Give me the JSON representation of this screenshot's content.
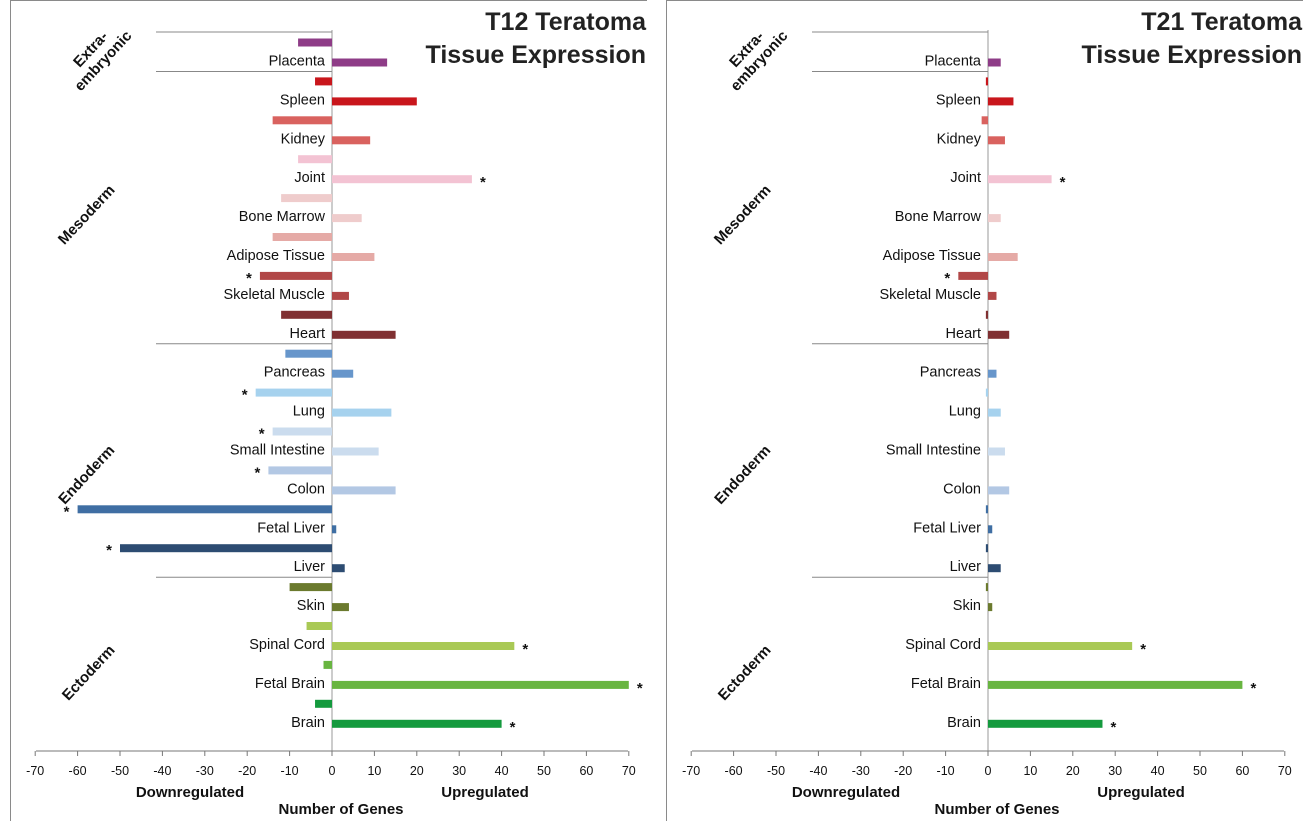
{
  "chart_data": [
    {
      "type": "bar",
      "orientation": "horizontal",
      "title": [
        "T12 Teratoma",
        "Tissue Expression"
      ],
      "xlabel": "Number of Genes",
      "xlabel_left": "Downregulated",
      "xlabel_right": "Upregulated",
      "xlim": [
        -70,
        70
      ],
      "xticks": [
        "-70",
        "-60",
        "-50",
        "-40",
        "-30",
        "-20",
        "-10",
        "0",
        "10",
        "20",
        "30",
        "40",
        "50",
        "60",
        "70"
      ],
      "groups": [
        {
          "name": "Extra-\nembryonic",
          "lines": [
            "Extra-",
            "embryonic"
          ],
          "categories": [
            "Placenta"
          ]
        },
        {
          "name": "Mesoderm",
          "lines": [
            "Mesoderm"
          ],
          "categories": [
            "Spleen",
            "Kidney",
            "Joint",
            "Bone Marrow",
            "Adipose Tissue",
            "Skeletal Muscle",
            "Heart"
          ]
        },
        {
          "name": "Endoderm",
          "lines": [
            "Endoderm"
          ],
          "categories": [
            "Pancreas",
            "Lung",
            "Small Intestine",
            "Colon",
            "Fetal Liver",
            "Liver"
          ]
        },
        {
          "name": "Ectoderm",
          "lines": [
            "Ectoderm"
          ],
          "categories": [
            "Skin",
            "Spinal Cord",
            "Fetal Brain",
            "Brain"
          ]
        }
      ],
      "categories": [
        "Placenta",
        "Spleen",
        "Kidney",
        "Joint",
        "Bone Marrow",
        "Adipose Tissue",
        "Skeletal Muscle",
        "Heart",
        "Pancreas",
        "Lung",
        "Small Intestine",
        "Colon",
        "Fetal Liver",
        "Liver",
        "Skin",
        "Spinal Cord",
        "Fetal Brain",
        "Brain"
      ],
      "colors": [
        "#8e3c87",
        "#c9161c",
        "#d9625f",
        "#f3c3d3",
        "#efcccc",
        "#e5aaa6",
        "#b14747",
        "#803032",
        "#6796cb",
        "#a6d2ee",
        "#cbdcee",
        "#b3c8e4",
        "#3f6ea3",
        "#2d4c72",
        "#6b7a2e",
        "#a9c955",
        "#68b540",
        "#149a3e"
      ],
      "series": [
        {
          "name": "Downregulated",
          "values": [
            -8,
            -4,
            -14,
            -8,
            -12,
            -14,
            -17,
            -12,
            -11,
            -18,
            -14,
            -15,
            -60,
            -50,
            -10,
            -6,
            -2,
            -4
          ]
        },
        {
          "name": "Upregulated",
          "values": [
            13,
            20,
            9,
            33,
            7,
            10,
            4,
            15,
            5,
            14,
            11,
            15,
            1,
            3,
            4,
            43,
            70,
            40
          ]
        }
      ],
      "significant_down": [
        "Skeletal Muscle",
        "Lung",
        "Small Intestine",
        "Colon",
        "Fetal Liver",
        "Liver"
      ],
      "significant_up": [
        "Joint",
        "Spinal Cord",
        "Fetal Brain",
        "Brain"
      ],
      "significance_marker": "*"
    },
    {
      "type": "bar",
      "orientation": "horizontal",
      "title": [
        "T21 Teratoma",
        "Tissue Expression"
      ],
      "xlabel": "Number of Genes",
      "xlabel_left": "Downregulated",
      "xlabel_right": "Upregulated",
      "xlim": [
        -70,
        70
      ],
      "xticks": [
        "-70",
        "-60",
        "-50",
        "-40",
        "-30",
        "-20",
        "-10",
        "0",
        "10",
        "20",
        "30",
        "40",
        "50",
        "60",
        "70"
      ],
      "groups": [
        {
          "name": "Extra-\nembryonic",
          "lines": [
            "Extra-",
            "embryonic"
          ],
          "categories": [
            "Placenta"
          ]
        },
        {
          "name": "Mesoderm",
          "lines": [
            "Mesoderm"
          ],
          "categories": [
            "Spleen",
            "Kidney",
            "Joint",
            "Bone Marrow",
            "Adipose Tissue",
            "Skeletal Muscle",
            "Heart"
          ]
        },
        {
          "name": "Endoderm",
          "lines": [
            "Endoderm"
          ],
          "categories": [
            "Pancreas",
            "Lung",
            "Small Intestine",
            "Colon",
            "Fetal Liver",
            "Liver"
          ]
        },
        {
          "name": "Ectoderm",
          "lines": [
            "Ectoderm"
          ],
          "categories": [
            "Skin",
            "Spinal Cord",
            "Fetal Brain",
            "Brain"
          ]
        }
      ],
      "categories": [
        "Placenta",
        "Spleen",
        "Kidney",
        "Joint",
        "Bone Marrow",
        "Adipose Tissue",
        "Skeletal Muscle",
        "Heart",
        "Pancreas",
        "Lung",
        "Small Intestine",
        "Colon",
        "Fetal Liver",
        "Liver",
        "Skin",
        "Spinal Cord",
        "Fetal Brain",
        "Brain"
      ],
      "colors": [
        "#8e3c87",
        "#c9161c",
        "#d9625f",
        "#f3c3d3",
        "#efcccc",
        "#e5aaa6",
        "#b14747",
        "#803032",
        "#6796cb",
        "#a6d2ee",
        "#cbdcee",
        "#b3c8e4",
        "#3f6ea3",
        "#2d4c72",
        "#6b7a2e",
        "#a9c955",
        "#68b540",
        "#149a3e"
      ],
      "series": [
        {
          "name": "Downregulated",
          "values": [
            0,
            -0.5,
            -1.5,
            0,
            0,
            0,
            -7,
            -0.5,
            0,
            -0.5,
            0,
            0,
            -0.5,
            -0.5,
            -0.5,
            0,
            0,
            0
          ]
        },
        {
          "name": "Upregulated",
          "values": [
            3,
            6,
            4,
            15,
            3,
            7,
            2,
            5,
            2,
            3,
            4,
            5,
            1,
            3,
            1,
            34,
            60,
            27
          ]
        }
      ],
      "significant_down": [
        "Skeletal Muscle"
      ],
      "significant_up": [
        "Joint",
        "Spinal Cord",
        "Fetal Brain",
        "Brain"
      ],
      "significance_marker": "*"
    }
  ]
}
